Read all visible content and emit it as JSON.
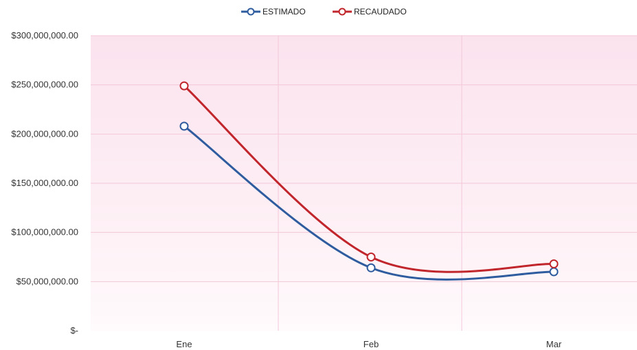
{
  "chart_data": {
    "type": "line",
    "title": "",
    "xlabel": "",
    "ylabel": "",
    "categories": [
      "Ene",
      "Feb",
      "Mar"
    ],
    "y_ticks": [
      0,
      50000000,
      100000000,
      150000000,
      200000000,
      250000000,
      300000000
    ],
    "y_tick_labels": [
      "$-",
      "$50,000,000.00",
      "$100,000,000.00",
      "$150,000,000.00",
      "$200,000,000.00",
      "$250,000,000.00",
      "$300,000,000.00"
    ],
    "ylim": [
      0,
      300000000
    ],
    "grid": true,
    "smooth": true,
    "legend_position": "top-center",
    "plot_background": "#fce6f0",
    "series": [
      {
        "name": "ESTIMADO",
        "color": "#2e5c9e",
        "values": [
          208000000,
          64000000,
          60000000
        ]
      },
      {
        "name": "RECAUDADO",
        "color": "#c0262c",
        "values": [
          249000000,
          75000000,
          68000000
        ]
      }
    ]
  }
}
